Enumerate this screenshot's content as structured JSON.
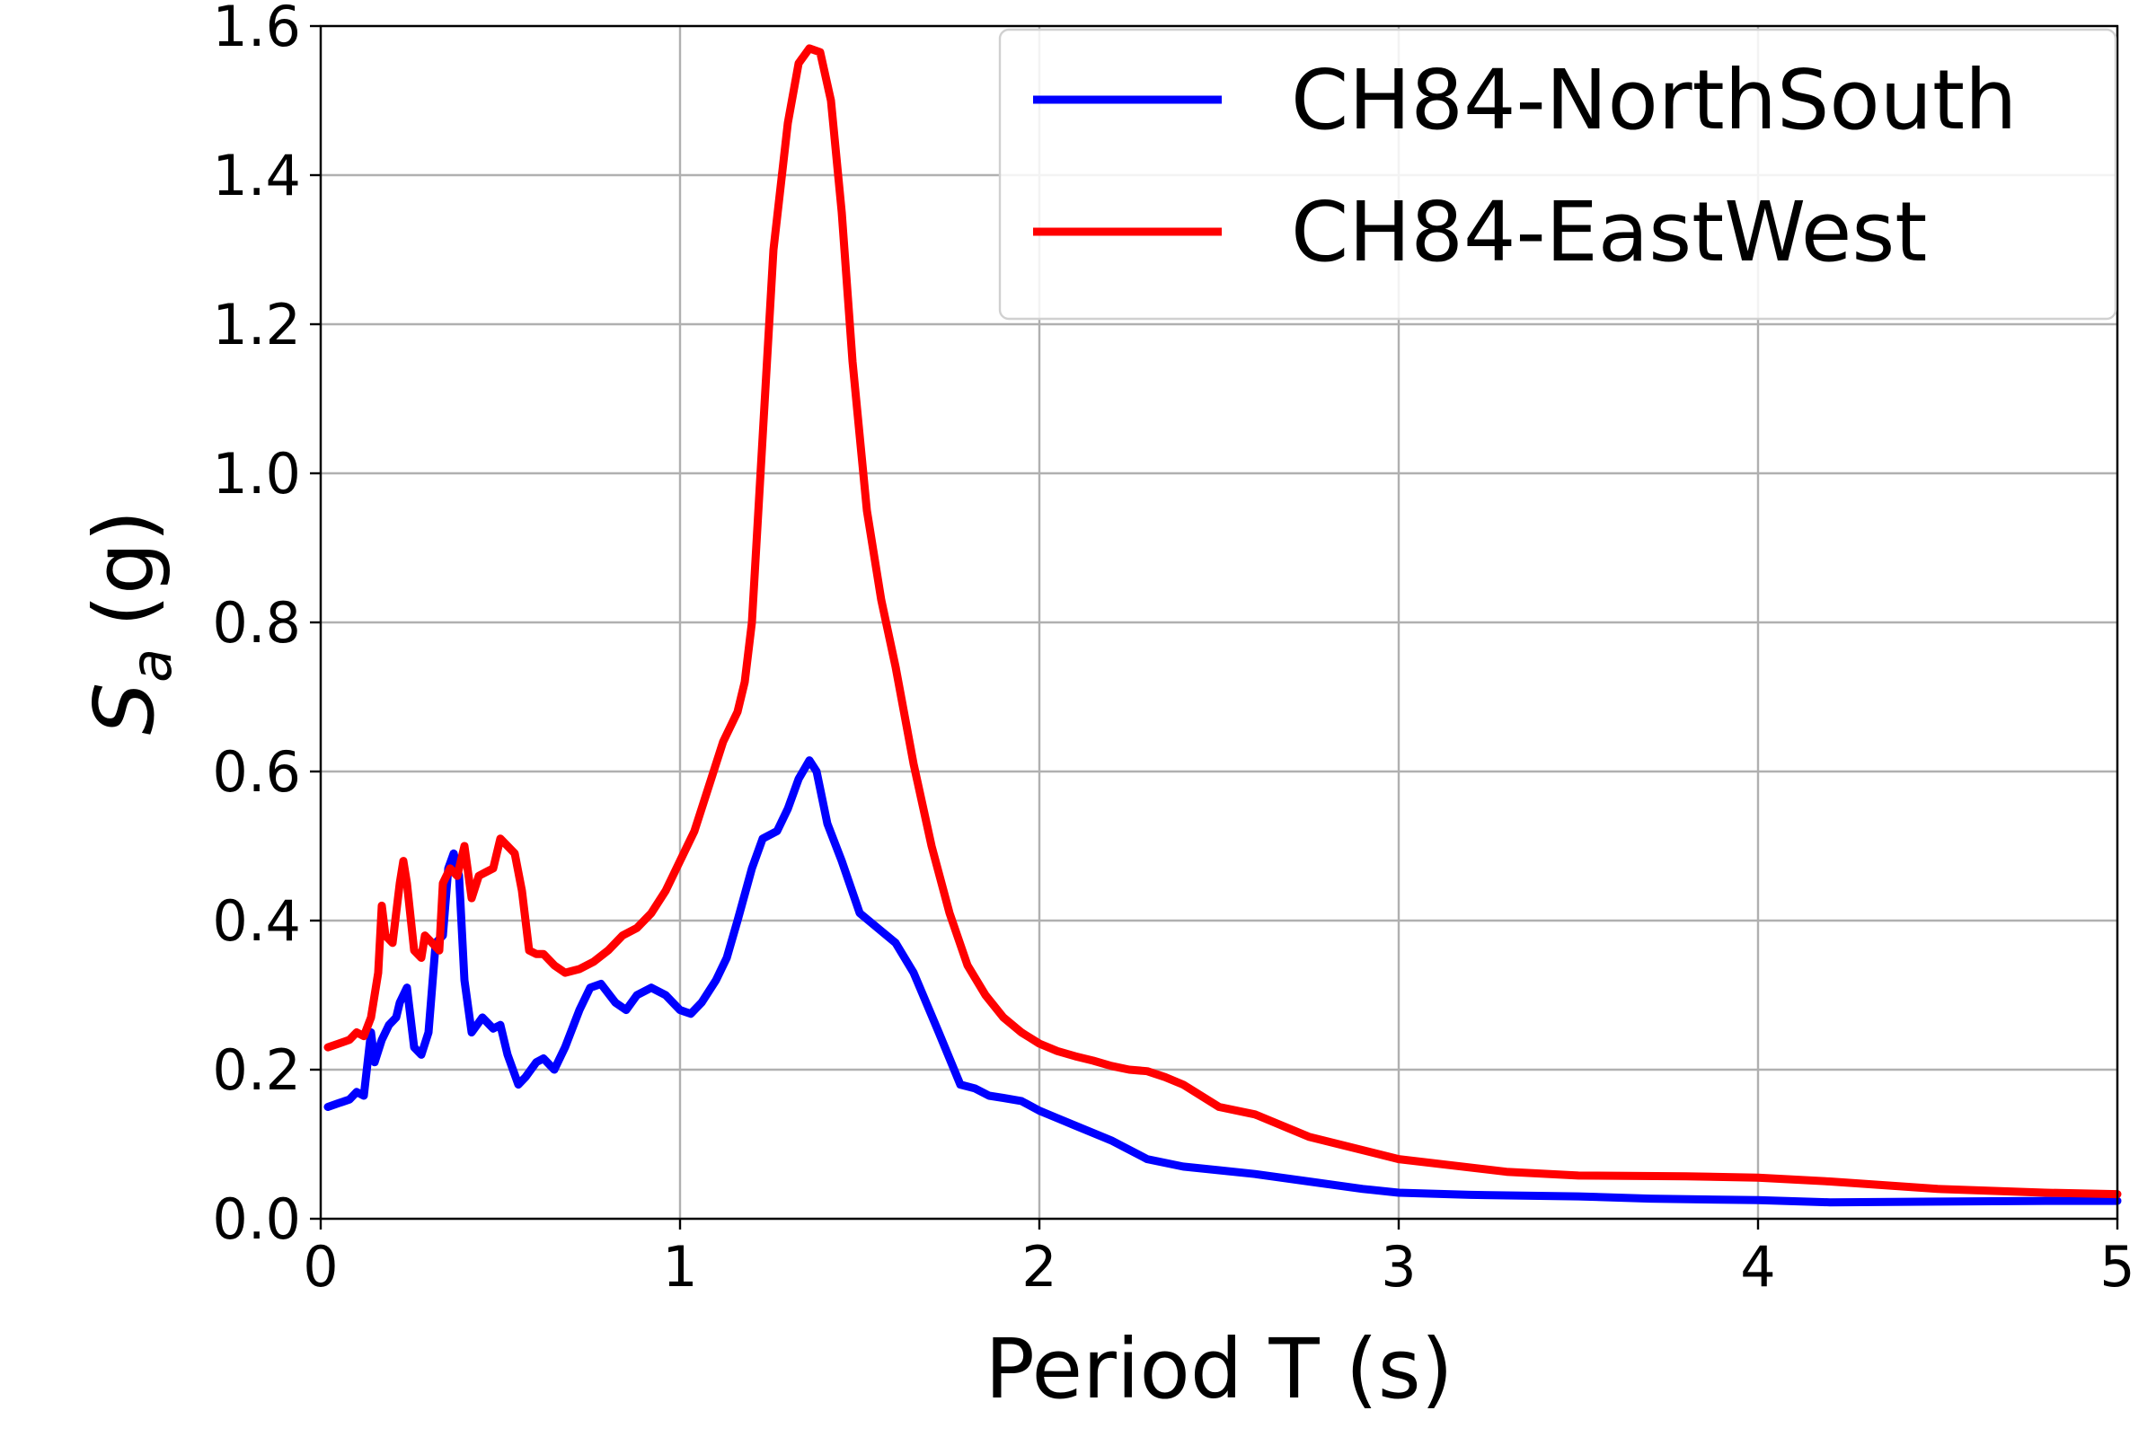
{
  "chart_data": {
    "type": "line",
    "title": "",
    "xlabel": "Period T (s)",
    "ylabel_main": "S",
    "ylabel_sub": "a",
    "ylabel_unit": "(g)",
    "xlim": [
      0,
      5
    ],
    "ylim": [
      0,
      1.6
    ],
    "xticks": [
      0,
      1,
      2,
      3,
      4,
      5
    ],
    "xtick_labels": [
      "0",
      "1",
      "2",
      "3",
      "4",
      "5"
    ],
    "yticks": [
      0.0,
      0.2,
      0.4,
      0.6,
      0.8,
      1.0,
      1.2,
      1.4,
      1.6
    ],
    "ytick_labels": [
      "0.0",
      "0.2",
      "0.4",
      "0.6",
      "0.8",
      "1.0",
      "1.2",
      "1.4",
      "1.6"
    ],
    "grid": true,
    "legend_position": "top-right",
    "series": [
      {
        "name": "CH84-NorthSouth",
        "color": "#0000ff",
        "points": [
          [
            0.02,
            0.15
          ],
          [
            0.05,
            0.155
          ],
          [
            0.08,
            0.16
          ],
          [
            0.1,
            0.17
          ],
          [
            0.12,
            0.165
          ],
          [
            0.14,
            0.25
          ],
          [
            0.15,
            0.21
          ],
          [
            0.17,
            0.24
          ],
          [
            0.19,
            0.26
          ],
          [
            0.21,
            0.27
          ],
          [
            0.22,
            0.29
          ],
          [
            0.24,
            0.31
          ],
          [
            0.26,
            0.23
          ],
          [
            0.28,
            0.22
          ],
          [
            0.3,
            0.25
          ],
          [
            0.32,
            0.37
          ],
          [
            0.34,
            0.38
          ],
          [
            0.355,
            0.47
          ],
          [
            0.37,
            0.49
          ],
          [
            0.385,
            0.46
          ],
          [
            0.4,
            0.32
          ],
          [
            0.42,
            0.25
          ],
          [
            0.45,
            0.27
          ],
          [
            0.48,
            0.255
          ],
          [
            0.5,
            0.26
          ],
          [
            0.52,
            0.22
          ],
          [
            0.55,
            0.18
          ],
          [
            0.57,
            0.19
          ],
          [
            0.6,
            0.21
          ],
          [
            0.62,
            0.215
          ],
          [
            0.65,
            0.2
          ],
          [
            0.68,
            0.23
          ],
          [
            0.72,
            0.28
          ],
          [
            0.75,
            0.31
          ],
          [
            0.78,
            0.315
          ],
          [
            0.82,
            0.29
          ],
          [
            0.85,
            0.28
          ],
          [
            0.88,
            0.3
          ],
          [
            0.92,
            0.31
          ],
          [
            0.96,
            0.3
          ],
          [
            1.0,
            0.28
          ],
          [
            1.03,
            0.275
          ],
          [
            1.06,
            0.29
          ],
          [
            1.1,
            0.32
          ],
          [
            1.13,
            0.35
          ],
          [
            1.16,
            0.4
          ],
          [
            1.2,
            0.47
          ],
          [
            1.23,
            0.51
          ],
          [
            1.27,
            0.52
          ],
          [
            1.3,
            0.55
          ],
          [
            1.33,
            0.59
          ],
          [
            1.36,
            0.615
          ],
          [
            1.38,
            0.6
          ],
          [
            1.41,
            0.53
          ],
          [
            1.45,
            0.48
          ],
          [
            1.5,
            0.41
          ],
          [
            1.55,
            0.39
          ],
          [
            1.6,
            0.37
          ],
          [
            1.65,
            0.33
          ],
          [
            1.72,
            0.25
          ],
          [
            1.78,
            0.18
          ],
          [
            1.82,
            0.175
          ],
          [
            1.86,
            0.165
          ],
          [
            1.9,
            0.162
          ],
          [
            1.95,
            0.158
          ],
          [
            2.0,
            0.145
          ],
          [
            2.05,
            0.135
          ],
          [
            2.1,
            0.125
          ],
          [
            2.2,
            0.105
          ],
          [
            2.3,
            0.08
          ],
          [
            2.4,
            0.07
          ],
          [
            2.5,
            0.065
          ],
          [
            2.6,
            0.06
          ],
          [
            2.75,
            0.05
          ],
          [
            2.9,
            0.04
          ],
          [
            3.0,
            0.035
          ],
          [
            3.2,
            0.032
          ],
          [
            3.5,
            0.03
          ],
          [
            3.7,
            0.027
          ],
          [
            4.0,
            0.025
          ],
          [
            4.2,
            0.022
          ],
          [
            4.5,
            0.023
          ],
          [
            4.8,
            0.024
          ],
          [
            5.0,
            0.024
          ]
        ]
      },
      {
        "name": "CH84-EastWest",
        "color": "#ff0000",
        "points": [
          [
            0.02,
            0.23
          ],
          [
            0.05,
            0.235
          ],
          [
            0.08,
            0.24
          ],
          [
            0.1,
            0.25
          ],
          [
            0.12,
            0.245
          ],
          [
            0.14,
            0.27
          ],
          [
            0.16,
            0.33
          ],
          [
            0.17,
            0.42
          ],
          [
            0.18,
            0.38
          ],
          [
            0.2,
            0.37
          ],
          [
            0.22,
            0.45
          ],
          [
            0.23,
            0.48
          ],
          [
            0.24,
            0.45
          ],
          [
            0.26,
            0.36
          ],
          [
            0.28,
            0.35
          ],
          [
            0.29,
            0.38
          ],
          [
            0.31,
            0.37
          ],
          [
            0.33,
            0.36
          ],
          [
            0.34,
            0.45
          ],
          [
            0.36,
            0.47
          ],
          [
            0.38,
            0.46
          ],
          [
            0.4,
            0.5
          ],
          [
            0.42,
            0.43
          ],
          [
            0.44,
            0.46
          ],
          [
            0.46,
            0.465
          ],
          [
            0.48,
            0.47
          ],
          [
            0.5,
            0.51
          ],
          [
            0.52,
            0.5
          ],
          [
            0.54,
            0.49
          ],
          [
            0.56,
            0.44
          ],
          [
            0.58,
            0.36
          ],
          [
            0.6,
            0.355
          ],
          [
            0.62,
            0.355
          ],
          [
            0.65,
            0.34
          ],
          [
            0.68,
            0.33
          ],
          [
            0.72,
            0.335
          ],
          [
            0.76,
            0.345
          ],
          [
            0.8,
            0.36
          ],
          [
            0.84,
            0.38
          ],
          [
            0.88,
            0.39
          ],
          [
            0.92,
            0.41
          ],
          [
            0.96,
            0.44
          ],
          [
            1.0,
            0.48
          ],
          [
            1.04,
            0.52
          ],
          [
            1.08,
            0.58
          ],
          [
            1.12,
            0.64
          ],
          [
            1.16,
            0.68
          ],
          [
            1.18,
            0.72
          ],
          [
            1.2,
            0.8
          ],
          [
            1.23,
            1.05
          ],
          [
            1.26,
            1.3
          ],
          [
            1.3,
            1.47
          ],
          [
            1.33,
            1.55
          ],
          [
            1.36,
            1.57
          ],
          [
            1.39,
            1.565
          ],
          [
            1.42,
            1.5
          ],
          [
            1.45,
            1.35
          ],
          [
            1.48,
            1.15
          ],
          [
            1.52,
            0.95
          ],
          [
            1.56,
            0.83
          ],
          [
            1.6,
            0.74
          ],
          [
            1.65,
            0.61
          ],
          [
            1.7,
            0.5
          ],
          [
            1.75,
            0.41
          ],
          [
            1.8,
            0.34
          ],
          [
            1.85,
            0.3
          ],
          [
            1.9,
            0.27
          ],
          [
            1.95,
            0.25
          ],
          [
            2.0,
            0.235
          ],
          [
            2.05,
            0.225
          ],
          [
            2.1,
            0.218
          ],
          [
            2.15,
            0.212
          ],
          [
            2.2,
            0.205
          ],
          [
            2.25,
            0.2
          ],
          [
            2.3,
            0.198
          ],
          [
            2.35,
            0.19
          ],
          [
            2.4,
            0.18
          ],
          [
            2.5,
            0.15
          ],
          [
            2.6,
            0.14
          ],
          [
            2.75,
            0.11
          ],
          [
            3.0,
            0.08
          ],
          [
            3.3,
            0.063
          ],
          [
            3.5,
            0.058
          ],
          [
            3.8,
            0.057
          ],
          [
            4.0,
            0.055
          ],
          [
            4.2,
            0.05
          ],
          [
            4.5,
            0.04
          ],
          [
            4.8,
            0.035
          ],
          [
            5.0,
            0.033
          ]
        ]
      }
    ]
  }
}
